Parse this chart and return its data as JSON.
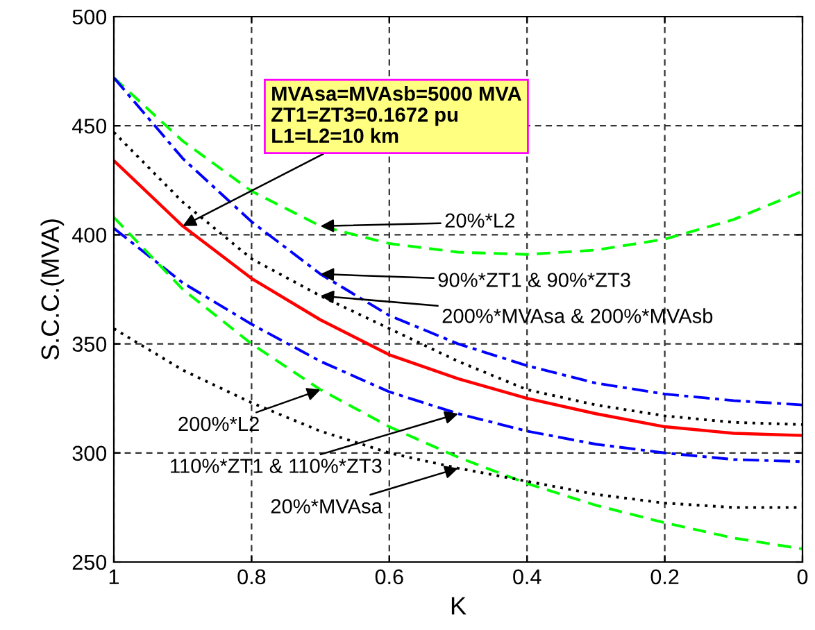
{
  "chart_data": {
    "type": "line",
    "xlabel": "K",
    "ylabel": "S.C.C.(MVA)",
    "xlim": [
      1,
      0
    ],
    "ylim": [
      250,
      500
    ],
    "xticks": [
      1,
      0.8,
      0.6,
      0.4,
      0.2,
      0
    ],
    "yticks": [
      250,
      300,
      350,
      400,
      450,
      500
    ],
    "grid": true,
    "legend": false,
    "x": [
      1,
      0.9,
      0.8,
      0.7,
      0.6,
      0.5,
      0.4,
      0.3,
      0.2,
      0.1,
      0
    ],
    "series": [
      {
        "color": "#00ff00",
        "line_style": "dashed",
        "values": [
          472,
          443,
          420,
          404,
          396,
          392,
          391,
          393,
          398,
          407,
          420
        ]
      },
      {
        "color": "#0000ff",
        "line_style": "dashdot",
        "values": [
          472,
          435,
          406,
          382,
          363,
          350,
          340,
          332,
          327,
          324,
          322
        ]
      },
      {
        "color": "#000000",
        "line_style": "dotted",
        "values": [
          447,
          415,
          389,
          372,
          357,
          342,
          329,
          322,
          317,
          314,
          313
        ]
      },
      {
        "color": "#ff0000",
        "line_style": "solid",
        "values": [
          434,
          404,
          380,
          361,
          345,
          334,
          325,
          318,
          312,
          309,
          308
        ]
      },
      {
        "color": "#0000ff",
        "line_style": "dashdot",
        "values": [
          403,
          378,
          359,
          342,
          328,
          318,
          310,
          304,
          300,
          297,
          296
        ]
      },
      {
        "color": "#00ff00",
        "line_style": "dashed",
        "values": [
          408,
          375,
          350,
          329,
          312,
          298,
          286,
          276,
          268,
          261,
          256
        ]
      },
      {
        "color": "#000000",
        "line_style": "dotted",
        "values": [
          357,
          338,
          323,
          310,
          300,
          293,
          287,
          281,
          277,
          275,
          275
        ]
      }
    ],
    "annotations": [
      {
        "text": "MVAsa=MVAsb=5000 MVA\nZT1=ZT3=0.1672 pu\nL1=L2=10 km",
        "x": 0.9,
        "y": 404
      },
      {
        "text": "20%*L2",
        "x": 0.7,
        "y": 404
      },
      {
        "text": "90%*ZT1 & 90%*ZT3",
        "x": 0.7,
        "y": 382
      },
      {
        "text": "200%*MVAsa & 200%*MVAsb",
        "x": 0.7,
        "y": 372
      },
      {
        "text": "200%*L2",
        "x": 0.7,
        "y": 329
      },
      {
        "text": "110%*ZT1 & 110%*ZT3",
        "x": 0.5,
        "y": 318
      },
      {
        "text": "20%*MVAsa",
        "x": 0.5,
        "y": 293
      }
    ]
  }
}
